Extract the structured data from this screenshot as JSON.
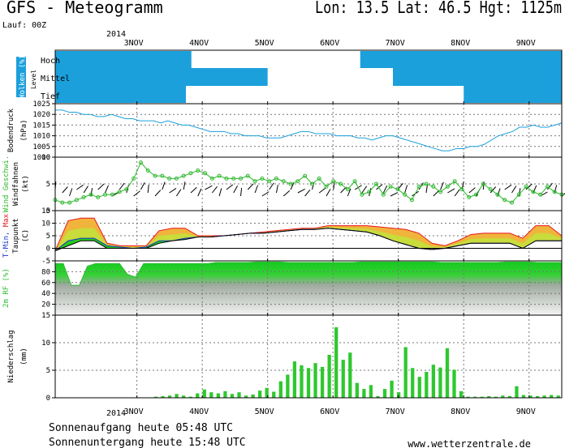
{
  "header": {
    "title": "GFS - Meteogramm",
    "location": "Lon: 13.5  Lat: 46.5  Hgt: 1125m",
    "run": "Lauf: 00Z"
  },
  "footer": {
    "sunrise": "Sonnenaufgang heute 05:48 UTC",
    "sunset": "Sonnenuntergang heute 15:48 UTC",
    "site": "www.wetterzentrale.de"
  },
  "colors": {
    "cloud": "#1ba0dc",
    "pressure": "#1ba0dc",
    "wind": "#2db82d",
    "temp_max": "#e8141e",
    "temp_min": "#1432c8",
    "temp_fill_warm": "#f0b43c",
    "temp_fill_mid": "#c8dc3c",
    "temp_fill_green": "#28c81e",
    "rh_green": "#2ebc32",
    "precip": "#2ec82e",
    "frame": "#000000"
  },
  "chart_data": {
    "time_axis": {
      "year_label": "2014",
      "dates": [
        "3NOV",
        "4NOV",
        "5NOV",
        "6NOV",
        "7NOV",
        "8NOV",
        "9NOV"
      ],
      "x_range_hours": [
        0,
        186
      ],
      "step_hours": 3
    },
    "panels": [
      {
        "id": "clouds",
        "type": "heatmap",
        "ylabel": "Wolken (%)",
        "ylabel2": "Level",
        "levels": [
          "Hoch",
          "Mittel",
          "Tief"
        ],
        "cloud_intervals_hours": {
          "high": [
            [
              0,
              50
            ],
            [
              112,
              186
            ]
          ],
          "mid": [
            [
              0,
              78
            ],
            [
              124,
              186
            ]
          ],
          "low": [
            [
              0,
              48
            ],
            [
              150,
              186
            ]
          ]
        }
      },
      {
        "id": "pressure",
        "type": "line",
        "ylabel": "Bodendruck",
        "unit": "(hPa)",
        "ylim": [
          1000,
          1025
        ],
        "yticks": [
          1000,
          1005,
          1010,
          1015,
          1020,
          1025
        ],
        "values": [
          1022,
          1022,
          1021,
          1021,
          1020,
          1020,
          1019,
          1019,
          1020,
          1019,
          1018,
          1018,
          1017,
          1017,
          1017,
          1016,
          1017,
          1016,
          1015,
          1015,
          1014,
          1013,
          1012,
          1012,
          1012,
          1011,
          1011,
          1010,
          1010,
          1010,
          1009,
          1009,
          1009,
          1010,
          1011,
          1012,
          1012,
          1011,
          1011,
          1011,
          1010,
          1010,
          1010,
          1009,
          1009,
          1008,
          1009,
          1010,
          1010,
          1009,
          1008,
          1007,
          1006,
          1005,
          1004,
          1003,
          1003,
          1004,
          1004,
          1005,
          1005,
          1006,
          1008,
          1010,
          1011,
          1012,
          1014,
          1014,
          1015,
          1014,
          1014,
          1015,
          1016
        ]
      },
      {
        "id": "wind",
        "type": "line",
        "ylabel": "Wind Geschwi.",
        "ylabel2": "Windfahnen",
        "unit": "(kt)",
        "ylim": [
          0,
          10
        ],
        "yticks": [
          0,
          5,
          10
        ],
        "values": [
          2,
          1.5,
          1.5,
          2,
          2.5,
          3,
          2.5,
          3,
          3,
          3.5,
          4,
          6,
          9,
          7.5,
          6.5,
          6.5,
          6,
          6,
          6.5,
          7,
          7.5,
          7,
          6,
          6.5,
          6,
          6,
          6,
          6.5,
          5.5,
          6,
          5.5,
          6,
          5.5,
          5,
          5.5,
          6.5,
          5,
          6,
          4.5,
          5.5,
          5,
          4,
          5.5,
          3,
          3.5,
          5,
          3,
          4.5,
          4,
          3,
          2,
          4.5,
          5,
          4.5,
          3.5,
          4.5,
          5.5,
          4,
          2.5,
          3,
          5,
          4,
          3,
          2,
          1.5,
          3,
          4.5,
          3.5,
          3,
          4.5,
          3.5,
          3
        ]
      },
      {
        "id": "temperature",
        "type": "area",
        "ylabel": "T-Min, Max",
        "ylabel2": "Taupunkt",
        "unit": "(C)",
        "ylim": [
          -5,
          15
        ],
        "yticks": [
          -5,
          0,
          5,
          10,
          15
        ],
        "series": [
          {
            "name": "T-Max",
            "values": [
              -1,
              11,
              12,
              12,
              2,
              1,
              1,
              1,
              7,
              8,
              8,
              5,
              5,
              5,
              5.5,
              6,
              6.5,
              7,
              7.5,
              8,
              8,
              9,
              9,
              9,
              9,
              8.5,
              8,
              7.5,
              6,
              2,
              1,
              3,
              5.5,
              6,
              6,
              6,
              4,
              9,
              9,
              5
            ]
          },
          {
            "name": "T-Min",
            "values": [
              -1,
              3,
              4,
              4,
              1,
              0.5,
              0,
              0.5,
              3,
              3,
              4,
              4.5,
              4.5,
              5,
              5.5,
              6,
              6,
              6.5,
              7,
              7.5,
              7.5,
              8,
              7.5,
              7,
              6.5,
              5,
              3,
              1.5,
              0,
              -0.5,
              0,
              1,
              2,
              2,
              2,
              2,
              0,
              3,
              3,
              3
            ]
          },
          {
            "name": "Taupunkt",
            "values": [
              -1,
              1,
              3,
              3,
              0,
              0,
              0,
              0,
              2,
              3,
              3.5,
              4.5,
              4.5,
              5,
              5.5,
              6,
              6,
              6.5,
              7,
              7.5,
              7.5,
              8,
              7.5,
              7,
              6.5,
              5,
              3,
              1.5,
              0,
              -0.5,
              0,
              1,
              2,
              2,
              2,
              2,
              0,
              3,
              3,
              3
            ]
          }
        ]
      },
      {
        "id": "humidity",
        "type": "area",
        "ylabel": "2m RF (%)",
        "ylim": [
          0,
          100
        ],
        "yticks": [
          20,
          40,
          60,
          80
        ],
        "values": [
          95,
          95,
          55,
          55,
          90,
          95,
          95,
          95,
          95,
          75,
          70,
          95,
          95,
          95,
          95,
          95,
          95,
          95,
          95,
          95,
          97,
          97,
          97,
          97,
          97,
          98,
          98,
          98,
          98,
          97,
          97,
          97,
          97,
          97,
          97,
          97,
          97,
          97,
          98,
          98,
          98,
          98,
          98,
          98,
          98,
          98,
          98,
          98,
          97,
          97,
          97,
          97,
          97,
          97,
          97,
          97,
          98,
          98,
          98,
          98,
          97,
          97,
          97,
          97
        ]
      },
      {
        "id": "precipitation",
        "type": "bar",
        "ylabel": "Niederschlag",
        "unit": "(mm)",
        "ylim": [
          0,
          15
        ],
        "yticks": [
          0,
          5,
          10,
          15
        ],
        "values": [
          0,
          0,
          0,
          0,
          0,
          0,
          0,
          0,
          0,
          0,
          0,
          0,
          0,
          0,
          0.2,
          0.3,
          0.4,
          0.7,
          0.4,
          0.2,
          0.8,
          1.5,
          1.0,
          0.8,
          1.2,
          0.7,
          1.0,
          0.4,
          0.6,
          1.3,
          1.8,
          1.1,
          3.0,
          4.2,
          6.6,
          5.9,
          5.4,
          6.3,
          5.6,
          7.8,
          12.8,
          6.9,
          8.2,
          2.7,
          1.6,
          2.3,
          0.3,
          1.6,
          3.1,
          1.0,
          9.2,
          5.4,
          3.8,
          4.7,
          6.0,
          5.5,
          9.0,
          5.1,
          1.2,
          0.2,
          0.2,
          0.2,
          0.3,
          0.2,
          0.4,
          0.3,
          2.1,
          0.5,
          0.4,
          0.3,
          0.4,
          0.5,
          0.4
        ]
      }
    ]
  }
}
